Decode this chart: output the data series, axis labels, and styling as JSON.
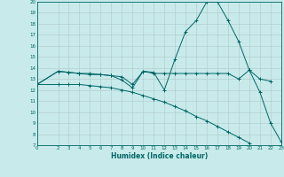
{
  "xlabel": "Humidex (Indice chaleur)",
  "x_values": [
    0,
    2,
    3,
    4,
    5,
    6,
    7,
    8,
    9,
    10,
    11,
    12,
    13,
    14,
    15,
    16,
    17,
    18,
    19,
    20,
    21,
    22,
    23
  ],
  "series1": [
    12.5,
    13.7,
    13.6,
    13.5,
    13.4,
    13.4,
    13.3,
    13.2,
    12.5,
    13.7,
    13.6,
    12.0,
    14.8,
    17.3,
    18.3,
    20.0,
    20.0,
    18.3,
    16.4,
    13.8,
    11.8,
    9.0,
    7.3
  ],
  "series2": [
    12.5,
    13.7,
    13.6,
    13.5,
    13.5,
    13.4,
    13.3,
    12.9,
    12.2,
    13.7,
    13.5,
    13.5,
    13.5,
    13.5,
    13.5,
    13.5,
    13.5,
    13.5,
    13.0,
    13.8,
    13.0,
    12.8,
    null
  ],
  "series3": [
    12.5,
    12.5,
    12.5,
    12.5,
    12.4,
    12.3,
    12.2,
    12.0,
    11.8,
    11.5,
    11.2,
    10.9,
    10.5,
    10.1,
    9.6,
    9.2,
    8.7,
    8.2,
    7.7,
    7.2,
    null,
    null,
    null
  ],
  "line_color": "#006666",
  "bg_color": "#c8eaea",
  "grid_color": "#b0c8c8",
  "ylim": [
    7,
    20
  ],
  "xlim": [
    0,
    23
  ],
  "yticks": [
    7,
    8,
    9,
    10,
    11,
    12,
    13,
    14,
    15,
    16,
    17,
    18,
    19,
    20
  ],
  "xticks": [
    0,
    2,
    3,
    4,
    5,
    6,
    7,
    8,
    9,
    10,
    11,
    12,
    13,
    14,
    15,
    16,
    17,
    18,
    19,
    20,
    21,
    22,
    23
  ]
}
